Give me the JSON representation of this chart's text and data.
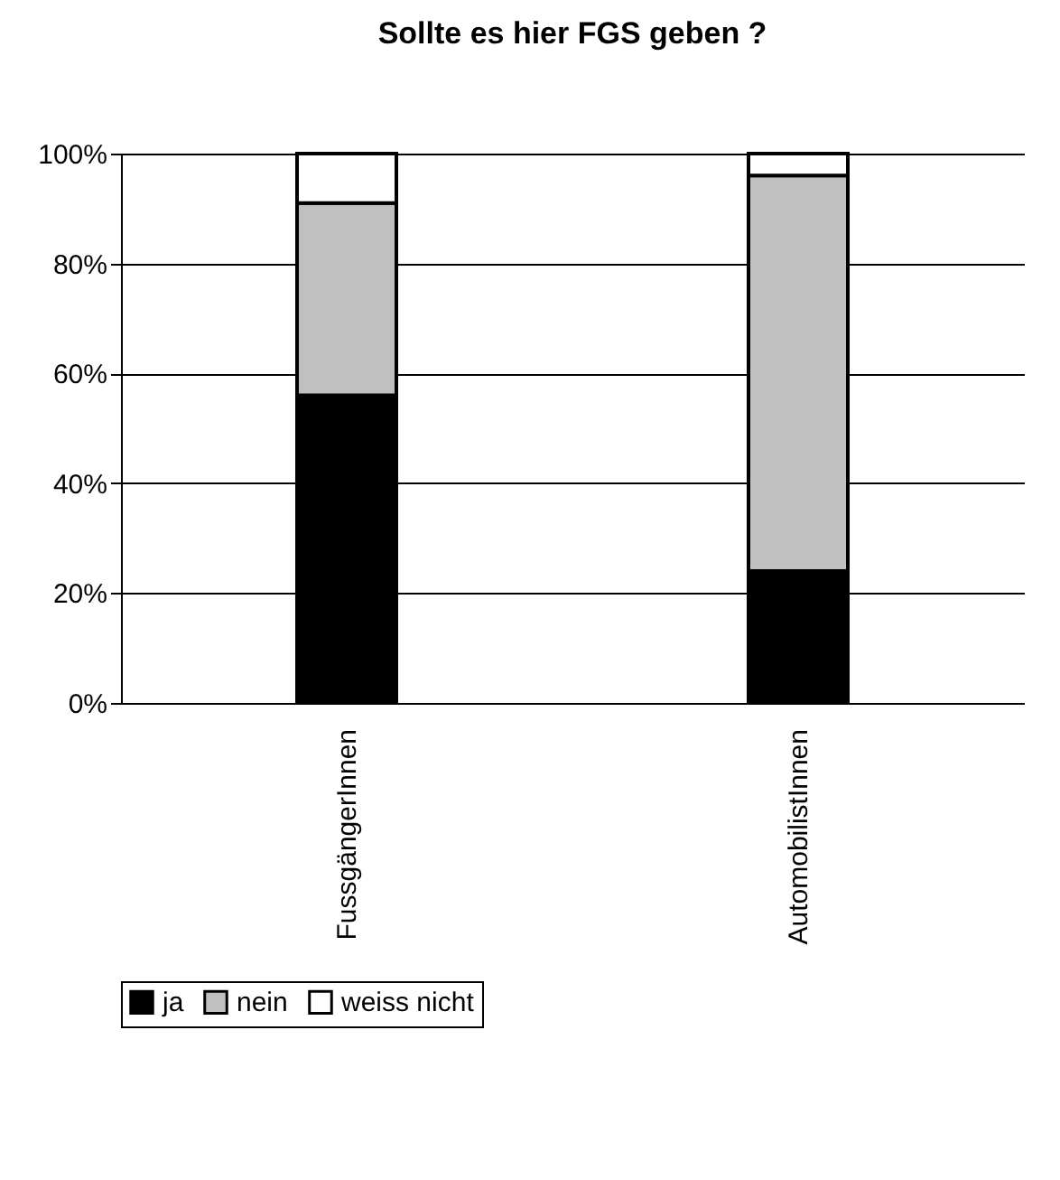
{
  "chart_data": {
    "type": "bar",
    "title": "Sollte es hier FGS geben ?",
    "categories": [
      "FussgängerInnen",
      "AutomobilistInnen"
    ],
    "stacked": true,
    "series": [
      {
        "name": "ja",
        "color": "#000000",
        "values": [
          56,
          24
        ]
      },
      {
        "name": "nein",
        "color": "#c0c0c0",
        "values": [
          35,
          72
        ]
      },
      {
        "name": "weiss nicht",
        "color": "#ffffff",
        "values": [
          9,
          4
        ]
      }
    ],
    "ylim": [
      0,
      100
    ],
    "yticks": [
      {
        "value": 0,
        "label": "0%"
      },
      {
        "value": 20,
        "label": "20%"
      },
      {
        "value": 40,
        "label": "40%"
      },
      {
        "value": 60,
        "label": "60%"
      },
      {
        "value": 80,
        "label": "80%"
      },
      {
        "value": 100,
        "label": "100%"
      }
    ],
    "grid": "y",
    "legend": "bottom"
  }
}
